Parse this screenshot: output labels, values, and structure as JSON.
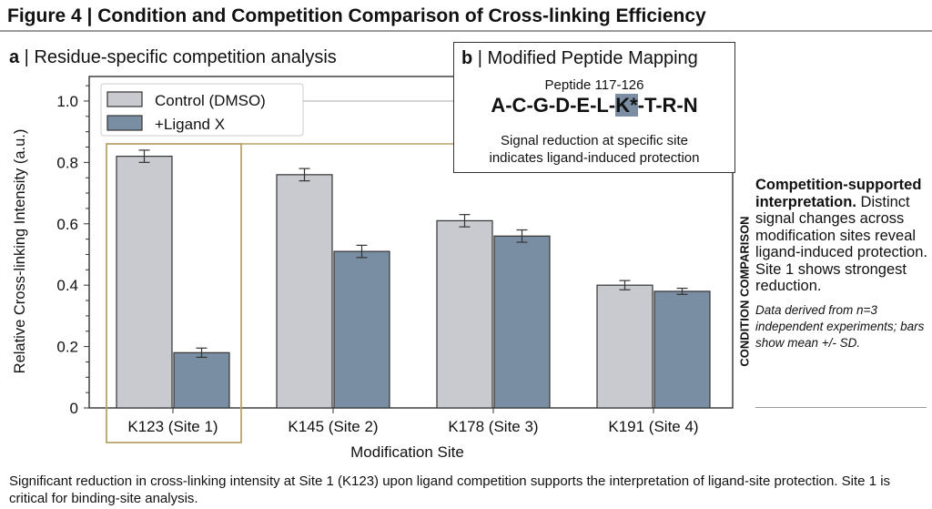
{
  "figure_title": "Figure 4 | Condition and Competition Comparison of Cross-linking Efficiency",
  "panel_a": {
    "letter": "a",
    "title": "Residue-specific competition analysis"
  },
  "panel_b": {
    "letter": "b",
    "title": "Modified Peptide Mapping",
    "peptide_label": "Peptide 117-126",
    "sequence_before": "A-C-G-D-E-L-",
    "sequence_highlight": "K*",
    "sequence_after": "-T-R-N",
    "note_line1": "Signal reduction at specific site",
    "note_line2": "indicates ligand-induced protection"
  },
  "side_panel": {
    "vertical_label": "CONDITION COMPARISON",
    "heading": "Competition-supported interpretation.",
    "body": "Distinct signal changes across modification sites reveal ligand-induced protection. Site 1 shows strongest reduction.",
    "note": "Data derived from n=3 independent experiments; bars show mean +/- SD."
  },
  "caption": "Significant reduction in cross-linking intensity at Site 1 (K123) upon ligand competition supports the interpretation of ligand-site protection. Site 1 is critical for binding-site analysis.",
  "colors": {
    "control": "#c8cacf",
    "ligand": "#7a8ea3",
    "highlight": "#b8a46c",
    "edge": "#333333"
  },
  "chart_data": {
    "type": "bar",
    "xlabel": "Modification Site",
    "ylabel": "Relative Cross-linking Intensity (a.u.)",
    "categories": [
      "K123 (Site 1)",
      "K145 (Site 2)",
      "K178 (Site 3)",
      "K191 (Site 4)"
    ],
    "series": [
      {
        "name": "Control (DMSO)",
        "values": [
          0.82,
          0.76,
          0.61,
          0.4
        ],
        "errors": [
          0.02,
          0.02,
          0.02,
          0.015
        ]
      },
      {
        "name": "+Ligand X",
        "values": [
          0.18,
          0.51,
          0.56,
          0.38
        ],
        "errors": [
          0.015,
          0.02,
          0.02,
          0.01
        ]
      }
    ],
    "ylim": [
      0,
      1.08
    ],
    "yticks": [
      "0",
      "0.2",
      "0.4",
      "0.6",
      "0.8",
      "1.0"
    ],
    "ytick_values": [
      0,
      0.2,
      0.4,
      0.6,
      0.8,
      1.0
    ],
    "grid": false,
    "legend": "top-left",
    "highlighted_category": "K123 (Site 1)"
  }
}
